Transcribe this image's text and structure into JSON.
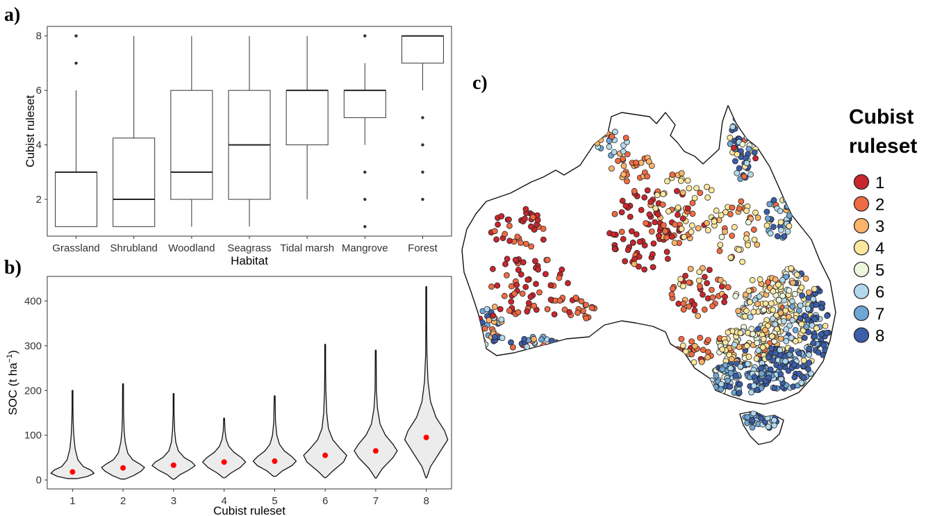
{
  "chart_data": [
    {
      "panel": "a)",
      "type": "box",
      "xlabel": "Habitat",
      "ylabel": "Cubist ruleset",
      "ylim": [
        0.65,
        8.35
      ],
      "yticks": [
        "2",
        "4",
        "6",
        "8"
      ],
      "categories": [
        "Grassland",
        "Shrubland",
        "Woodland",
        "Seagrass",
        "Tidal marsh",
        "Mangrove",
        "Forest"
      ],
      "boxes": [
        {
          "q1": 1,
          "median": 3,
          "q3": 3,
          "whisker_low": 1,
          "whisker_high": 6,
          "outliers": [
            7,
            8
          ]
        },
        {
          "q1": 1,
          "median": 2,
          "q3": 4.25,
          "whisker_low": 1,
          "whisker_high": 8,
          "outliers": []
        },
        {
          "q1": 2,
          "median": 3,
          "q3": 6,
          "whisker_low": 1,
          "whisker_high": 8,
          "outliers": []
        },
        {
          "q1": 2,
          "median": 4,
          "q3": 6,
          "whisker_low": 1,
          "whisker_high": 8,
          "outliers": []
        },
        {
          "q1": 4,
          "median": 6,
          "q3": 6,
          "whisker_low": 2,
          "whisker_high": 8,
          "outliers": []
        },
        {
          "q1": 5,
          "median": 6,
          "q3": 6,
          "whisker_low": 4,
          "whisker_high": 7,
          "outliers": [
            1,
            2,
            3,
            8
          ]
        },
        {
          "q1": 7,
          "median": 8,
          "q3": 8,
          "whisker_low": 6,
          "whisker_high": 8,
          "outliers": [
            2,
            3,
            4,
            5
          ]
        }
      ]
    },
    {
      "panel": "b)",
      "type": "violin",
      "xlabel": "Cubist ruleset",
      "ylabel_main": "SOC (t ha",
      "ylabel_sup": "−1",
      "ylabel_end": ")",
      "ylim": [
        -20,
        455
      ],
      "yticks": [
        "0",
        "100",
        "200",
        "300",
        "400"
      ],
      "categories": [
        "1",
        "2",
        "3",
        "4",
        "5",
        "6",
        "7",
        "8"
      ],
      "violins": [
        {
          "min": 3,
          "max": 200,
          "mean": 18,
          "profile": [
            [
              3,
              0.2
            ],
            [
              8,
              0.7
            ],
            [
              15,
              1.0
            ],
            [
              22,
              0.85
            ],
            [
              30,
              0.5
            ],
            [
              45,
              0.25
            ],
            [
              70,
              0.12
            ],
            [
              100,
              0.06
            ],
            [
              130,
              0.03
            ],
            [
              160,
              0.015
            ],
            [
              200,
              0
            ]
          ]
        },
        {
          "min": 2,
          "max": 215,
          "mean": 27,
          "profile": [
            [
              2,
              0.1
            ],
            [
              10,
              0.5
            ],
            [
              20,
              0.85
            ],
            [
              28,
              1.0
            ],
            [
              35,
              0.8
            ],
            [
              45,
              0.45
            ],
            [
              60,
              0.22
            ],
            [
              85,
              0.1
            ],
            [
              110,
              0.05
            ],
            [
              150,
              0.025
            ],
            [
              215,
              0
            ]
          ]
        },
        {
          "min": 2,
          "max": 193,
          "mean": 33,
          "profile": [
            [
              2,
              0.05
            ],
            [
              12,
              0.3
            ],
            [
              22,
              0.7
            ],
            [
              32,
              1.0
            ],
            [
              40,
              0.85
            ],
            [
              50,
              0.5
            ],
            [
              65,
              0.22
            ],
            [
              85,
              0.1
            ],
            [
              110,
              0.05
            ],
            [
              150,
              0.02
            ],
            [
              193,
              0
            ]
          ]
        },
        {
          "min": 5,
          "max": 138,
          "mean": 40,
          "profile": [
            [
              5,
              0.05
            ],
            [
              15,
              0.3
            ],
            [
              28,
              0.75
            ],
            [
              40,
              1.0
            ],
            [
              50,
              0.8
            ],
            [
              62,
              0.45
            ],
            [
              75,
              0.22
            ],
            [
              90,
              0.1
            ],
            [
              110,
              0.04
            ],
            [
              138,
              0
            ]
          ]
        },
        {
          "min": 8,
          "max": 188,
          "mean": 42,
          "profile": [
            [
              8,
              0.05
            ],
            [
              20,
              0.35
            ],
            [
              32,
              0.8
            ],
            [
              42,
              1.0
            ],
            [
              52,
              0.8
            ],
            [
              65,
              0.45
            ],
            [
              80,
              0.22
            ],
            [
              100,
              0.1
            ],
            [
              130,
              0.04
            ],
            [
              188,
              0
            ]
          ]
        },
        {
          "min": 5,
          "max": 303,
          "mean": 55,
          "profile": [
            [
              5,
              0.03
            ],
            [
              20,
              0.35
            ],
            [
              40,
              0.85
            ],
            [
              55,
              1.0
            ],
            [
              70,
              0.7
            ],
            [
              90,
              0.35
            ],
            [
              115,
              0.15
            ],
            [
              150,
              0.07
            ],
            [
              200,
              0.03
            ],
            [
              240,
              0.02
            ],
            [
              303,
              0
            ]
          ]
        },
        {
          "min": 4,
          "max": 290,
          "mean": 65,
          "profile": [
            [
              4,
              0.02
            ],
            [
              25,
              0.3
            ],
            [
              50,
              0.8
            ],
            [
              65,
              1.0
            ],
            [
              80,
              0.8
            ],
            [
              100,
              0.45
            ],
            [
              125,
              0.2
            ],
            [
              160,
              0.08
            ],
            [
              200,
              0.03
            ],
            [
              290,
              0
            ]
          ]
        },
        {
          "min": 5,
          "max": 432,
          "mean": 95,
          "profile": [
            [
              5,
              0.02
            ],
            [
              30,
              0.2
            ],
            [
              60,
              0.6
            ],
            [
              90,
              1.0
            ],
            [
              110,
              0.85
            ],
            [
              140,
              0.45
            ],
            [
              175,
              0.2
            ],
            [
              220,
              0.08
            ],
            [
              280,
              0.03
            ],
            [
              350,
              0.015
            ],
            [
              432,
              0
            ]
          ]
        }
      ]
    },
    {
      "panel": "c)",
      "type": "scatter-map",
      "legend_title_lines": [
        "Cubist",
        "ruleset"
      ],
      "legend_entries": [
        "1",
        "2",
        "3",
        "4",
        "5",
        "6",
        "7",
        "8"
      ],
      "colors": [
        "#c7272d",
        "#ef6b43",
        "#fbb36a",
        "#fbe79e",
        "#eef6de",
        "#b3d9ec",
        "#6fa6d4",
        "#3b5ea9"
      ]
    }
  ]
}
